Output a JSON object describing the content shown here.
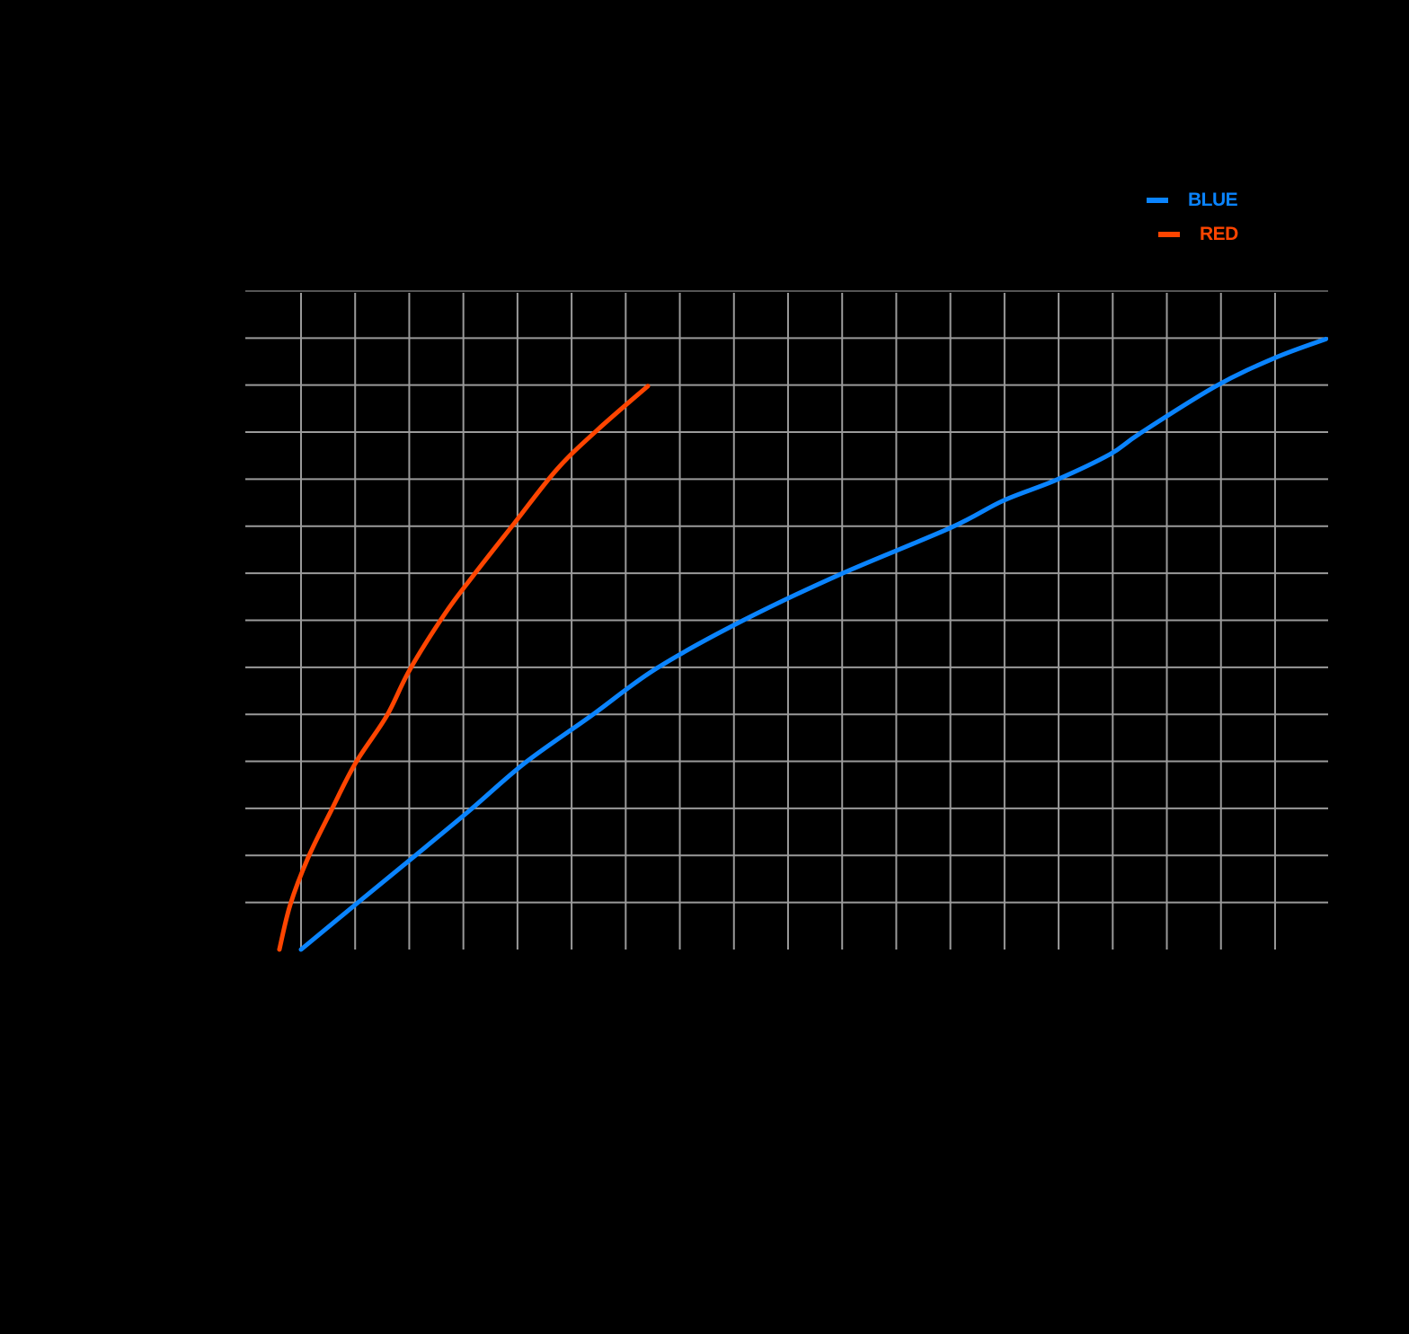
{
  "chart_data": {
    "type": "line",
    "title": "",
    "xlabel": "",
    "ylabel": "",
    "xlim": [
      -1,
      19
    ],
    "ylim": [
      0,
      14
    ],
    "grid": true,
    "x_gridlines": 19,
    "y_gridlines": 14,
    "tick_labels_visible": false,
    "legend_position": "top-right, above plot",
    "series": [
      {
        "name": "BLUE",
        "color": "#0A84FF",
        "x": [
          0.0,
          1.0,
          2.06,
          3.12,
          4.14,
          5.35,
          6.56,
          8.14,
          9.97,
          12.01,
          12.97,
          13.95,
          14.95,
          15.5,
          16.91,
          18.0,
          18.94
        ],
        "y": [
          0.0,
          0.95,
          1.95,
          2.96,
          3.97,
          4.96,
          5.97,
          6.98,
          7.98,
          8.97,
          9.54,
          9.98,
          10.53,
          10.97,
          11.98,
          12.58,
          12.98
        ]
      },
      {
        "name": "RED",
        "color": "#FF4500",
        "x": [
          -0.4,
          -0.2,
          0.13,
          0.56,
          1.01,
          1.58,
          2.01,
          2.66,
          3.19,
          3.94,
          4.73,
          5.48,
          6.41
        ],
        "y": [
          0.0,
          0.95,
          1.95,
          2.96,
          3.97,
          4.96,
          5.95,
          7.14,
          7.96,
          9.06,
          10.21,
          11.05,
          11.98
        ]
      }
    ]
  },
  "legend": {
    "items": [
      {
        "label": "BLUE",
        "color": "#0A84FF"
      },
      {
        "label": "RED",
        "color": "#FF4500"
      }
    ]
  },
  "colors": {
    "background": "#000000",
    "grid": "#9A9A9A",
    "grid_top": "#555555"
  }
}
